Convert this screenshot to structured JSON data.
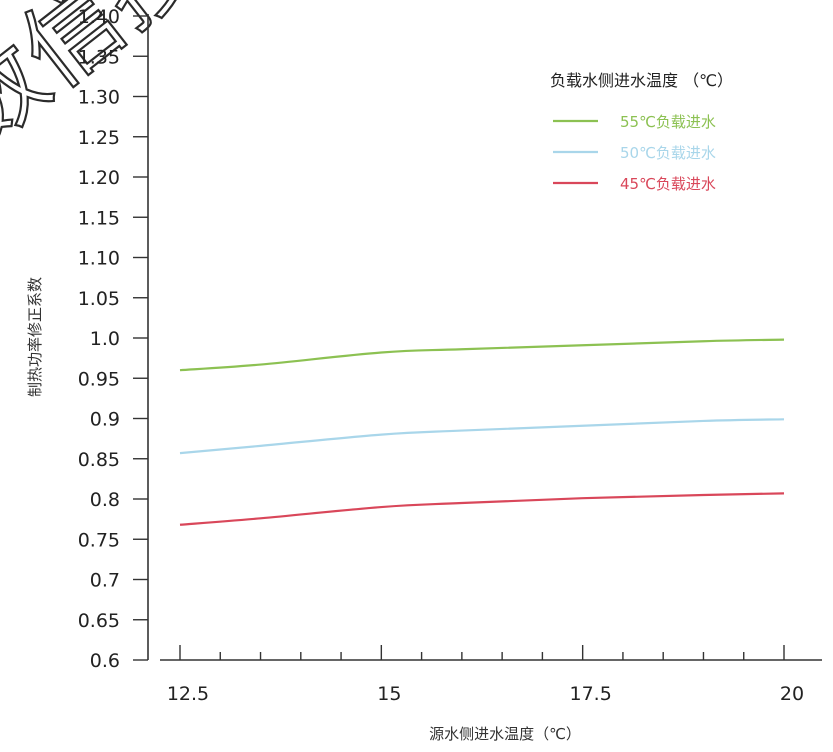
{
  "watermark": "数信搜",
  "chart_data": {
    "type": "line",
    "xlabel": "源水侧进水温度（℃）",
    "ylabel": "制热功率修正系数",
    "legend_title": "负载水侧进水温度 （℃）",
    "legend_position": "top-right",
    "grid": false,
    "xlim": [
      12.5,
      20
    ],
    "ylim": [
      0.6,
      1.4
    ],
    "x_ticks": [
      {
        "value": 12.5,
        "label": "12.5"
      },
      {
        "value": 15,
        "label": "15"
      },
      {
        "value": 17.5,
        "label": "17.5"
      },
      {
        "value": 20,
        "label": "20"
      }
    ],
    "y_ticks": [
      {
        "value": 0.6,
        "label": "0.6"
      },
      {
        "value": 0.65,
        "label": "0.65"
      },
      {
        "value": 0.7,
        "label": "0.7"
      },
      {
        "value": 0.75,
        "label": "0.75"
      },
      {
        "value": 0.8,
        "label": "0.8"
      },
      {
        "value": 0.85,
        "label": "0.85"
      },
      {
        "value": 0.9,
        "label": "0.9"
      },
      {
        "value": 0.95,
        "label": "0.95"
      },
      {
        "value": 1.0,
        "label": "1.0"
      },
      {
        "value": 1.05,
        "label": "1.05"
      },
      {
        "value": 1.1,
        "label": "1.10"
      },
      {
        "value": 1.15,
        "label": "1.15"
      },
      {
        "value": 1.2,
        "label": "1.20"
      },
      {
        "value": 1.25,
        "label": "1.25"
      },
      {
        "value": 1.3,
        "label": "1.30"
      },
      {
        "value": 1.35,
        "label": "1.35"
      },
      {
        "value": 1.4,
        "label": "1.40"
      }
    ],
    "series": [
      {
        "name": "55℃负载进水",
        "color": "#8cc152",
        "x": [
          12.5,
          13.5,
          15,
          16,
          17.5,
          19,
          20
        ],
        "y": [
          0.96,
          0.967,
          0.982,
          0.986,
          0.991,
          0.996,
          0.998
        ]
      },
      {
        "name": "50℃负载进水",
        "color": "#a9d6ea",
        "x": [
          12.5,
          13.5,
          15,
          16,
          17.5,
          19,
          20
        ],
        "y": [
          0.857,
          0.866,
          0.88,
          0.885,
          0.891,
          0.897,
          0.899
        ]
      },
      {
        "name": "45℃负载进水",
        "color": "#d9475a",
        "x": [
          12.5,
          13.5,
          15,
          16,
          17.5,
          19,
          20
        ],
        "y": [
          0.768,
          0.776,
          0.79,
          0.795,
          0.801,
          0.805,
          0.807
        ]
      }
    ]
  }
}
